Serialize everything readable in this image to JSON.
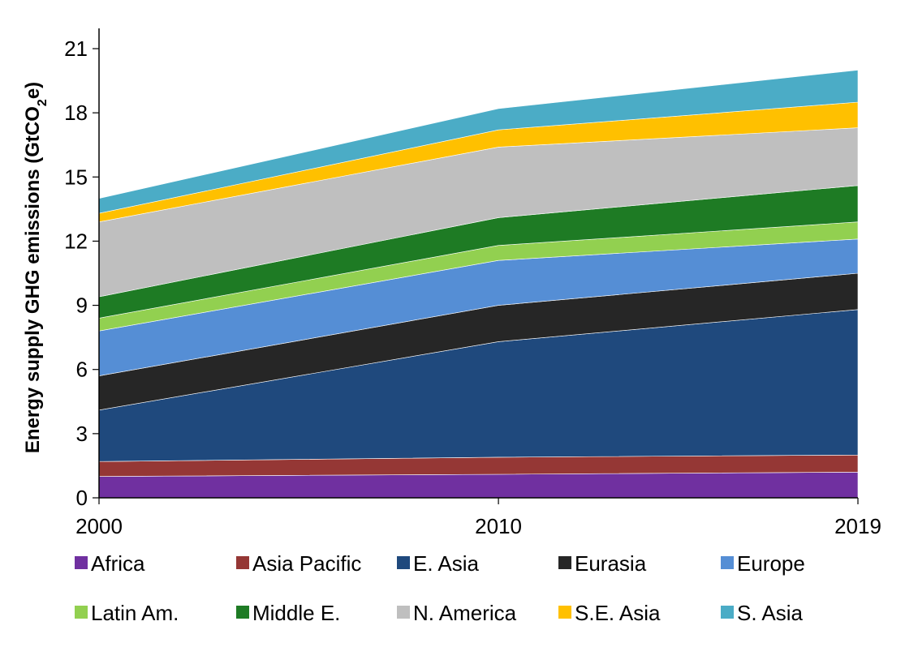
{
  "chart_data": {
    "type": "area",
    "stacked": true,
    "title": "",
    "xlabel": "",
    "ylabel_parts": [
      "Energy supply GHG emissions (GtCO",
      "2",
      "e)"
    ],
    "x": [
      2000,
      2010,
      2019
    ],
    "x_tick_labels": [
      "2000",
      "2010",
      "2019"
    ],
    "ylim": [
      0,
      21
    ],
    "y_ticks": [
      0,
      3,
      6,
      9,
      12,
      15,
      18,
      21
    ],
    "y_tick_labels": [
      "0",
      "3",
      "6",
      "9",
      "12",
      "15",
      "18",
      "21"
    ],
    "grid": false,
    "legend_position": "bottom",
    "series": [
      {
        "name": "Africa",
        "color": "#7030A0",
        "values": [
          1.0,
          1.1,
          1.2
        ]
      },
      {
        "name": "Asia Pacific",
        "color": "#953735",
        "values": [
          0.7,
          0.8,
          0.8
        ]
      },
      {
        "name": "E. Asia",
        "color": "#1F497D",
        "values": [
          2.4,
          5.4,
          6.8
        ]
      },
      {
        "name": "Eurasia",
        "color": "#262626",
        "values": [
          1.6,
          1.7,
          1.7
        ]
      },
      {
        "name": "Europe",
        "color": "#558ED5",
        "values": [
          2.1,
          2.1,
          1.6
        ]
      },
      {
        "name": "Latin Am.",
        "color": "#92D050",
        "values": [
          0.6,
          0.7,
          0.8
        ]
      },
      {
        "name": "Middle E.",
        "color": "#1E7B24",
        "values": [
          1.0,
          1.3,
          1.7
        ]
      },
      {
        "name": "N. America",
        "color": "#BFBFBF",
        "values": [
          3.5,
          3.3,
          2.7
        ]
      },
      {
        "name": "S.E. Asia",
        "color": "#FFC000",
        "values": [
          0.4,
          0.8,
          1.2
        ]
      },
      {
        "name": "S. Asia",
        "color": "#4BACC6",
        "values": [
          0.7,
          1.0,
          1.5
        ]
      }
    ]
  }
}
